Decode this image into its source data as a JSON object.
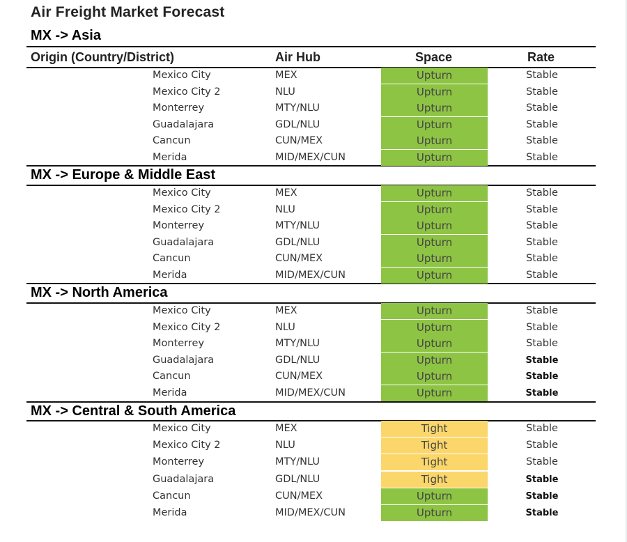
{
  "title": "Air Freight Market Forecast",
  "columns": {
    "origin": "Origin (Country/District)",
    "hub": "Air Hub",
    "space": "Space",
    "rate": "Rate"
  },
  "colors": {
    "upturn": "#8ec444",
    "tight": "#fbd66b"
  },
  "sections": [
    {
      "title": "MX -> Asia",
      "rows": [
        {
          "origin": "Mexico City",
          "hub": "MEX",
          "space": "Upturn",
          "rate": "Stable",
          "rate_bold": false
        },
        {
          "origin": "Mexico City 2",
          "hub": "NLU",
          "space": "Upturn",
          "rate": "Stable",
          "rate_bold": false
        },
        {
          "origin": "Monterrey",
          "hub": "MTY/NLU",
          "space": "Upturn",
          "rate": "Stable",
          "rate_bold": false
        },
        {
          "origin": "Guadalajara",
          "hub": "GDL/NLU",
          "space": "Upturn",
          "rate": "Stable",
          "rate_bold": false
        },
        {
          "origin": "Cancun",
          "hub": "CUN/MEX",
          "space": "Upturn",
          "rate": "Stable",
          "rate_bold": false
        },
        {
          "origin": "Merida",
          "hub": "MID/MEX/CUN",
          "space": "Upturn",
          "rate": "Stable",
          "rate_bold": false
        }
      ]
    },
    {
      "title": "MX -> Europe & Middle East",
      "rows": [
        {
          "origin": "Mexico City",
          "hub": "MEX",
          "space": "Upturn",
          "rate": "Stable",
          "rate_bold": false
        },
        {
          "origin": "Mexico City 2",
          "hub": "NLU",
          "space": "Upturn",
          "rate": "Stable",
          "rate_bold": false
        },
        {
          "origin": "Monterrey",
          "hub": "MTY/NLU",
          "space": "Upturn",
          "rate": "Stable",
          "rate_bold": false
        },
        {
          "origin": "Guadalajara",
          "hub": "GDL/NLU",
          "space": "Upturn",
          "rate": "Stable",
          "rate_bold": false
        },
        {
          "origin": "Cancun",
          "hub": "CUN/MEX",
          "space": "Upturn",
          "rate": "Stable",
          "rate_bold": false
        },
        {
          "origin": "Merida",
          "hub": "MID/MEX/CUN",
          "space": "Upturn",
          "rate": "Stable",
          "rate_bold": false
        }
      ]
    },
    {
      "title": "MX -> North America",
      "rows": [
        {
          "origin": "Mexico City",
          "hub": "MEX",
          "space": "Upturn",
          "rate": "Stable",
          "rate_bold": false
        },
        {
          "origin": "Mexico City 2",
          "hub": "NLU",
          "space": "Upturn",
          "rate": "Stable",
          "rate_bold": false
        },
        {
          "origin": "Monterrey",
          "hub": "MTY/NLU",
          "space": "Upturn",
          "rate": "Stable",
          "rate_bold": false
        },
        {
          "origin": "Guadalajara",
          "hub": "GDL/NLU",
          "space": "Upturn",
          "rate": "Stable",
          "rate_bold": true
        },
        {
          "origin": "Cancun",
          "hub": "CUN/MEX",
          "space": "Upturn",
          "rate": "Stable",
          "rate_bold": true
        },
        {
          "origin": "Merida",
          "hub": "MID/MEX/CUN",
          "space": "Upturn",
          "rate": "Stable",
          "rate_bold": true
        }
      ]
    },
    {
      "title": "MX -> Central & South America",
      "rows": [
        {
          "origin": "Mexico City",
          "hub": "MEX",
          "space": "Tight",
          "rate": "Stable",
          "rate_bold": false
        },
        {
          "origin": "Mexico City 2",
          "hub": "NLU",
          "space": "Tight",
          "rate": "Stable",
          "rate_bold": false
        },
        {
          "origin": "Monterrey",
          "hub": "MTY/NLU",
          "space": "Tight",
          "rate": "Stable",
          "rate_bold": false
        },
        {
          "origin": "Guadalajara",
          "hub": "GDL/NLU",
          "space": "Tight",
          "rate": "Stable",
          "rate_bold": true
        },
        {
          "origin": "Cancun",
          "hub": "CUN/MEX",
          "space": "Upturn",
          "rate": "Stable",
          "rate_bold": true
        },
        {
          "origin": "Merida",
          "hub": "MID/MEX/CUN",
          "space": "Upturn",
          "rate": "Stable",
          "rate_bold": true
        }
      ]
    }
  ]
}
